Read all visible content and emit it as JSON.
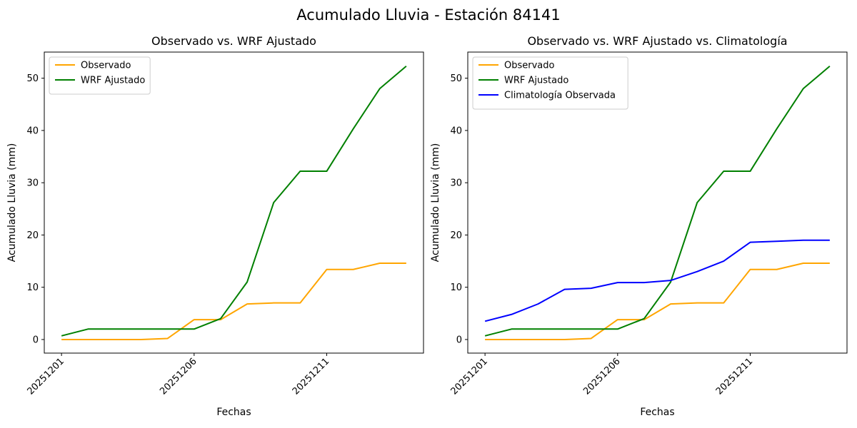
{
  "figure": {
    "title": "Acumulado Lluvia - Estación 84141"
  },
  "colors": {
    "observado": "#ffa500",
    "wrf": "#008000",
    "climatologia": "#0000ff"
  },
  "chart_data": [
    {
      "type": "line",
      "title": "Observado vs. WRF Ajustado",
      "xlabel": "Fechas",
      "ylabel": "Acumulado Lluvia (mm)",
      "x": [
        "20251201",
        "20251202",
        "20251203",
        "20251204",
        "20251205",
        "20251206",
        "20251207",
        "20251208",
        "20251209",
        "20251210",
        "20251211",
        "20251212",
        "20251213",
        "20251214"
      ],
      "xticks": [
        "20251201",
        "20251206",
        "20251211"
      ],
      "yticks": [
        0,
        10,
        20,
        30,
        40,
        50
      ],
      "ylim": [
        -2.6,
        55
      ],
      "legend": "upper-left",
      "series": [
        {
          "name": "Observado",
          "color": "#ffa500",
          "values": [
            0,
            0,
            0,
            0,
            0.2,
            3.8,
            3.8,
            6.8,
            7.0,
            7.0,
            13.4,
            13.4,
            14.6,
            14.6
          ]
        },
        {
          "name": "WRF Ajustado",
          "color": "#008000",
          "values": [
            0.7,
            2.0,
            2.0,
            2.0,
            2.0,
            2.0,
            4.0,
            11.0,
            26.2,
            32.2,
            32.2,
            40.3,
            48.0,
            52.3
          ]
        }
      ]
    },
    {
      "type": "line",
      "title": "Observado vs. WRF Ajustado vs. Climatología",
      "xlabel": "Fechas",
      "ylabel": "Acumulado Lluvia (mm)",
      "x": [
        "20251201",
        "20251202",
        "20251203",
        "20251204",
        "20251205",
        "20251206",
        "20251207",
        "20251208",
        "20251209",
        "20251210",
        "20251211",
        "20251212",
        "20251213",
        "20251214"
      ],
      "xticks": [
        "20251201",
        "20251206",
        "20251211"
      ],
      "yticks": [
        0,
        10,
        20,
        30,
        40,
        50
      ],
      "ylim": [
        -2.6,
        55
      ],
      "legend": "upper-left",
      "series": [
        {
          "name": "Observado",
          "color": "#ffa500",
          "values": [
            0,
            0,
            0,
            0,
            0.2,
            3.8,
            3.8,
            6.8,
            7.0,
            7.0,
            13.4,
            13.4,
            14.6,
            14.6
          ]
        },
        {
          "name": "WRF Ajustado",
          "color": "#008000",
          "values": [
            0.7,
            2.0,
            2.0,
            2.0,
            2.0,
            2.0,
            4.0,
            11.0,
            26.2,
            32.2,
            32.2,
            40.3,
            48.0,
            52.3
          ]
        },
        {
          "name": "Climatología Observada",
          "color": "#0000ff",
          "values": [
            3.5,
            4.8,
            6.8,
            9.6,
            9.8,
            10.9,
            10.9,
            11.3,
            13.0,
            15.0,
            18.6,
            18.8,
            19.0,
            19.0
          ]
        }
      ]
    }
  ]
}
